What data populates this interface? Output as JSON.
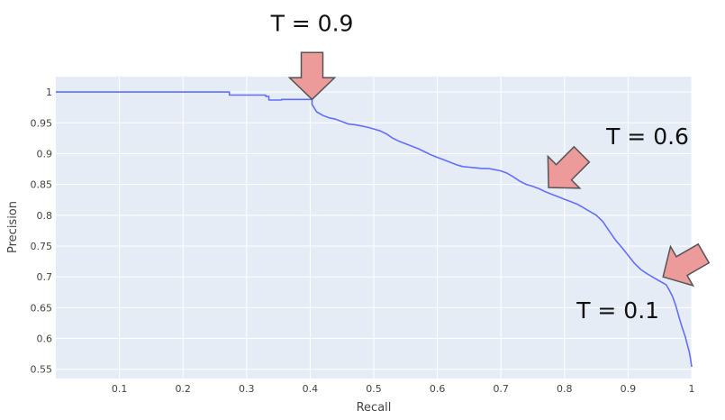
{
  "chart_data": {
    "type": "line",
    "title": "",
    "xlabel": "Recall",
    "ylabel": "Precision",
    "xlim": [
      0,
      1
    ],
    "ylim": [
      0.535,
      1.025
    ],
    "grid": true,
    "x_ticks": [
      0.1,
      0.2,
      0.3,
      0.4,
      0.5,
      0.6,
      0.7,
      0.8,
      0.9,
      1
    ],
    "y_ticks": [
      0.55,
      0.6,
      0.65,
      0.7,
      0.75,
      0.8,
      0.85,
      0.9,
      0.95,
      1
    ],
    "x_tick_labels": [
      "0.1",
      "0.2",
      "0.3",
      "0.4",
      "0.5",
      "0.6",
      "0.7",
      "0.8",
      "0.9",
      "1"
    ],
    "y_tick_labels": [
      "0.55",
      "0.6",
      "0.65",
      "0.7",
      "0.75",
      "0.8",
      "0.85",
      "0.9",
      "0.95",
      "1"
    ],
    "colors": {
      "line": "#636efa",
      "plot_bg": "#e5ecf6",
      "grid": "#ffffff",
      "arrow_fill": "#ec9a9a",
      "arrow_stroke": "#555555"
    },
    "series": [
      {
        "name": "",
        "x": [
          0,
          0.273,
          0.273,
          0.33,
          0.33,
          0.335,
          0.335,
          0.355,
          0.355,
          0.403,
          0.403,
          0.41,
          0.42,
          0.43,
          0.44,
          0.45,
          0.46,
          0.47,
          0.48,
          0.49,
          0.5,
          0.51,
          0.52,
          0.53,
          0.54,
          0.55,
          0.56,
          0.57,
          0.58,
          0.59,
          0.6,
          0.61,
          0.62,
          0.63,
          0.64,
          0.65,
          0.66,
          0.67,
          0.68,
          0.69,
          0.7,
          0.71,
          0.72,
          0.73,
          0.74,
          0.75,
          0.76,
          0.77,
          0.78,
          0.79,
          0.8,
          0.81,
          0.82,
          0.83,
          0.84,
          0.85,
          0.86,
          0.87,
          0.88,
          0.89,
          0.9,
          0.91,
          0.92,
          0.93,
          0.94,
          0.95,
          0.96,
          0.965,
          0.97,
          0.975,
          0.98,
          0.985,
          0.99,
          0.993,
          0.996,
          0.998,
          1
        ],
        "y": [
          1,
          1,
          0.995,
          0.995,
          0.993,
          0.993,
          0.987,
          0.987,
          0.988,
          0.988,
          0.98,
          0.968,
          0.962,
          0.958,
          0.956,
          0.952,
          0.948,
          0.947,
          0.945,
          0.943,
          0.94,
          0.937,
          0.932,
          0.925,
          0.92,
          0.916,
          0.912,
          0.908,
          0.903,
          0.898,
          0.894,
          0.89,
          0.886,
          0.882,
          0.879,
          0.878,
          0.877,
          0.876,
          0.876,
          0.874,
          0.872,
          0.868,
          0.862,
          0.855,
          0.85,
          0.847,
          0.843,
          0.838,
          0.834,
          0.83,
          0.826,
          0.822,
          0.818,
          0.812,
          0.806,
          0.8,
          0.79,
          0.775,
          0.76,
          0.748,
          0.735,
          0.722,
          0.712,
          0.705,
          0.699,
          0.693,
          0.687,
          0.678,
          0.668,
          0.653,
          0.635,
          0.618,
          0.603,
          0.59,
          0.579,
          0.568,
          0.554
        ]
      }
    ],
    "annotations": [
      {
        "text": "T = 0.9",
        "x": 0.403,
        "y": 0.988,
        "direction": "down"
      },
      {
        "text": "T = 0.6",
        "x": 0.775,
        "y": 0.845,
        "direction": "down-left"
      },
      {
        "text": "T = 0.1",
        "x": 0.955,
        "y": 0.7,
        "direction": "left"
      }
    ]
  }
}
